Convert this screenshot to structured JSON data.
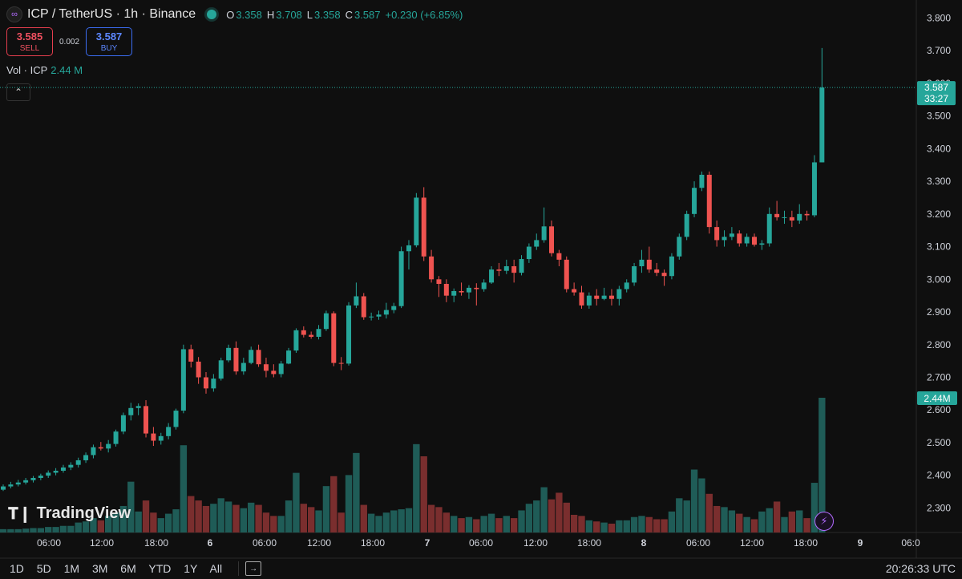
{
  "header": {
    "symbol_title": "ICP / TetherUS · 1h · Binance",
    "ohlc": [
      {
        "key": "O",
        "value": "3.358"
      },
      {
        "key": "H",
        "value": "3.708"
      },
      {
        "key": "L",
        "value": "3.358"
      },
      {
        "key": "C",
        "value": "3.587"
      }
    ],
    "change": "+0.230 (+6.85%)"
  },
  "trade": {
    "sell_price": "3.585",
    "sell_label": "SELL",
    "spread": "0.002",
    "buy_price": "3.587",
    "buy_label": "BUY"
  },
  "volume_legend": {
    "label": "Vol · ICP",
    "value": "2.44 M"
  },
  "price_tag": {
    "price": "3.587",
    "countdown": "33:27"
  },
  "volume_tag": "2.44M",
  "watermark": "TradingView",
  "toolbar": {
    "ranges": [
      "1D",
      "5D",
      "1M",
      "3M",
      "6M",
      "YTD",
      "1Y",
      "All"
    ],
    "clock": "20:26:33 UTC"
  },
  "colors": {
    "up": "#26a69a",
    "down": "#ef5350",
    "up_vol": "#1f5c57",
    "down_vol": "#7a2e2e",
    "background": "#0f0f0f"
  },
  "chart_data": {
    "type": "candlestick",
    "price_axis": {
      "ylim": [
        2.225,
        3.855
      ],
      "ticks": [
        "3.800",
        "3.700",
        "3.600",
        "3.500",
        "3.400",
        "3.300",
        "3.200",
        "3.100",
        "3.000",
        "2.900",
        "2.800",
        "2.700",
        "2.600",
        "2.500",
        "2.400",
        "2.300"
      ]
    },
    "time_axis_labels": [
      "06:00",
      "12:00",
      "18:00",
      "6",
      "06:00",
      "12:00",
      "18:00",
      "7",
      "06:00",
      "12:00",
      "18:00",
      "8",
      "06:00",
      "12:00",
      "18:00",
      "9",
      "06:0"
    ],
    "volume_axis": {
      "max": 2.44
    },
    "candles": [
      {
        "o": 2.356,
        "h": 2.372,
        "l": 2.352,
        "c": 2.366,
        "v": 0.06
      },
      {
        "o": 2.366,
        "h": 2.38,
        "l": 2.36,
        "c": 2.372,
        "v": 0.06
      },
      {
        "o": 2.372,
        "h": 2.386,
        "l": 2.366,
        "c": 2.378,
        "v": 0.06
      },
      {
        "o": 2.378,
        "h": 2.392,
        "l": 2.372,
        "c": 2.385,
        "v": 0.07
      },
      {
        "o": 2.385,
        "h": 2.398,
        "l": 2.378,
        "c": 2.392,
        "v": 0.08
      },
      {
        "o": 2.392,
        "h": 2.405,
        "l": 2.385,
        "c": 2.399,
        "v": 0.08
      },
      {
        "o": 2.399,
        "h": 2.415,
        "l": 2.392,
        "c": 2.408,
        "v": 0.1
      },
      {
        "o": 2.408,
        "h": 2.422,
        "l": 2.4,
        "c": 2.414,
        "v": 0.1
      },
      {
        "o": 2.414,
        "h": 2.432,
        "l": 2.408,
        "c": 2.424,
        "v": 0.12
      },
      {
        "o": 2.424,
        "h": 2.44,
        "l": 2.416,
        "c": 2.432,
        "v": 0.12
      },
      {
        "o": 2.432,
        "h": 2.454,
        "l": 2.424,
        "c": 2.446,
        "v": 0.18
      },
      {
        "o": 2.446,
        "h": 2.47,
        "l": 2.438,
        "c": 2.462,
        "v": 0.2
      },
      {
        "o": 2.462,
        "h": 2.494,
        "l": 2.452,
        "c": 2.486,
        "v": 0.26
      },
      {
        "o": 2.486,
        "h": 2.502,
        "l": 2.476,
        "c": 2.482,
        "v": 0.22
      },
      {
        "o": 2.482,
        "h": 2.508,
        "l": 2.47,
        "c": 2.496,
        "v": 0.3
      },
      {
        "o": 2.496,
        "h": 2.54,
        "l": 2.488,
        "c": 2.534,
        "v": 0.36
      },
      {
        "o": 2.534,
        "h": 2.592,
        "l": 2.526,
        "c": 2.584,
        "v": 0.48
      },
      {
        "o": 2.584,
        "h": 2.622,
        "l": 2.568,
        "c": 2.606,
        "v": 0.92
      },
      {
        "o": 2.606,
        "h": 2.62,
        "l": 2.584,
        "c": 2.612,
        "v": 0.38
      },
      {
        "o": 2.612,
        "h": 2.63,
        "l": 2.516,
        "c": 2.528,
        "v": 0.58
      },
      {
        "o": 2.528,
        "h": 2.548,
        "l": 2.49,
        "c": 2.506,
        "v": 0.36
      },
      {
        "o": 2.506,
        "h": 2.53,
        "l": 2.494,
        "c": 2.52,
        "v": 0.26
      },
      {
        "o": 2.52,
        "h": 2.56,
        "l": 2.51,
        "c": 2.548,
        "v": 0.34
      },
      {
        "o": 2.548,
        "h": 2.604,
        "l": 2.54,
        "c": 2.598,
        "v": 0.42
      },
      {
        "o": 2.598,
        "h": 2.8,
        "l": 2.59,
        "c": 2.786,
        "v": 1.58
      },
      {
        "o": 2.786,
        "h": 2.8,
        "l": 2.73,
        "c": 2.748,
        "v": 0.66
      },
      {
        "o": 2.748,
        "h": 2.762,
        "l": 2.68,
        "c": 2.7,
        "v": 0.58
      },
      {
        "o": 2.7,
        "h": 2.716,
        "l": 2.65,
        "c": 2.666,
        "v": 0.48
      },
      {
        "o": 2.666,
        "h": 2.71,
        "l": 2.656,
        "c": 2.696,
        "v": 0.52
      },
      {
        "o": 2.696,
        "h": 2.76,
        "l": 2.69,
        "c": 2.752,
        "v": 0.62
      },
      {
        "o": 2.752,
        "h": 2.8,
        "l": 2.746,
        "c": 2.79,
        "v": 0.56
      },
      {
        "o": 2.79,
        "h": 2.81,
        "l": 2.708,
        "c": 2.718,
        "v": 0.5
      },
      {
        "o": 2.718,
        "h": 2.76,
        "l": 2.708,
        "c": 2.744,
        "v": 0.44
      },
      {
        "o": 2.744,
        "h": 2.794,
        "l": 2.74,
        "c": 2.784,
        "v": 0.54
      },
      {
        "o": 2.784,
        "h": 2.8,
        "l": 2.732,
        "c": 2.74,
        "v": 0.5
      },
      {
        "o": 2.74,
        "h": 2.76,
        "l": 2.7,
        "c": 2.72,
        "v": 0.36
      },
      {
        "o": 2.72,
        "h": 2.74,
        "l": 2.7,
        "c": 2.71,
        "v": 0.3
      },
      {
        "o": 2.71,
        "h": 2.75,
        "l": 2.7,
        "c": 2.742,
        "v": 0.3
      },
      {
        "o": 2.742,
        "h": 2.79,
        "l": 2.74,
        "c": 2.782,
        "v": 0.58
      },
      {
        "o": 2.782,
        "h": 2.85,
        "l": 2.775,
        "c": 2.844,
        "v": 1.08
      },
      {
        "o": 2.844,
        "h": 2.856,
        "l": 2.822,
        "c": 2.83,
        "v": 0.52
      },
      {
        "o": 2.83,
        "h": 2.84,
        "l": 2.818,
        "c": 2.824,
        "v": 0.46
      },
      {
        "o": 2.824,
        "h": 2.86,
        "l": 2.816,
        "c": 2.848,
        "v": 0.4
      },
      {
        "o": 2.848,
        "h": 2.904,
        "l": 2.842,
        "c": 2.896,
        "v": 0.84
      },
      {
        "o": 2.896,
        "h": 2.902,
        "l": 2.734,
        "c": 2.744,
        "v": 1.02
      },
      {
        "o": 2.744,
        "h": 2.762,
        "l": 2.722,
        "c": 2.742,
        "v": 0.36
      },
      {
        "o": 2.742,
        "h": 2.93,
        "l": 2.736,
        "c": 2.92,
        "v": 1.04
      },
      {
        "o": 2.92,
        "h": 2.99,
        "l": 2.912,
        "c": 2.948,
        "v": 1.44
      },
      {
        "o": 2.948,
        "h": 2.958,
        "l": 2.876,
        "c": 2.884,
        "v": 0.5
      },
      {
        "o": 2.884,
        "h": 2.898,
        "l": 2.874,
        "c": 2.886,
        "v": 0.34
      },
      {
        "o": 2.886,
        "h": 2.904,
        "l": 2.876,
        "c": 2.892,
        "v": 0.3
      },
      {
        "o": 2.892,
        "h": 2.928,
        "l": 2.88,
        "c": 2.906,
        "v": 0.36
      },
      {
        "o": 2.906,
        "h": 2.928,
        "l": 2.896,
        "c": 2.918,
        "v": 0.4
      },
      {
        "o": 2.918,
        "h": 3.1,
        "l": 2.912,
        "c": 3.086,
        "v": 0.42
      },
      {
        "o": 3.086,
        "h": 3.12,
        "l": 3.03,
        "c": 3.104,
        "v": 0.44
      },
      {
        "o": 3.104,
        "h": 3.264,
        "l": 3.098,
        "c": 3.25,
        "v": 1.6
      },
      {
        "o": 3.25,
        "h": 3.282,
        "l": 3.056,
        "c": 3.07,
        "v": 1.38
      },
      {
        "o": 3.07,
        "h": 3.09,
        "l": 2.99,
        "c": 3.0,
        "v": 0.5
      },
      {
        "o": 3.0,
        "h": 3.01,
        "l": 2.946,
        "c": 2.986,
        "v": 0.46
      },
      {
        "o": 2.986,
        "h": 3.0,
        "l": 2.93,
        "c": 2.95,
        "v": 0.36
      },
      {
        "o": 2.95,
        "h": 2.972,
        "l": 2.93,
        "c": 2.964,
        "v": 0.3
      },
      {
        "o": 2.964,
        "h": 2.99,
        "l": 2.95,
        "c": 2.96,
        "v": 0.26
      },
      {
        "o": 2.96,
        "h": 2.982,
        "l": 2.94,
        "c": 2.974,
        "v": 0.28
      },
      {
        "o": 2.974,
        "h": 2.988,
        "l": 2.92,
        "c": 2.97,
        "v": 0.24
      },
      {
        "o": 2.97,
        "h": 3.0,
        "l": 2.962,
        "c": 2.99,
        "v": 0.3
      },
      {
        "o": 2.99,
        "h": 3.04,
        "l": 2.986,
        "c": 3.03,
        "v": 0.34
      },
      {
        "o": 3.03,
        "h": 3.05,
        "l": 3.01,
        "c": 3.026,
        "v": 0.26
      },
      {
        "o": 3.026,
        "h": 3.06,
        "l": 3.016,
        "c": 3.04,
        "v": 0.3
      },
      {
        "o": 3.04,
        "h": 3.06,
        "l": 2.99,
        "c": 3.02,
        "v": 0.26
      },
      {
        "o": 3.02,
        "h": 3.074,
        "l": 3.012,
        "c": 3.062,
        "v": 0.4
      },
      {
        "o": 3.062,
        "h": 3.11,
        "l": 3.05,
        "c": 3.1,
        "v": 0.52
      },
      {
        "o": 3.1,
        "h": 3.14,
        "l": 3.09,
        "c": 3.12,
        "v": 0.58
      },
      {
        "o": 3.12,
        "h": 3.22,
        "l": 3.112,
        "c": 3.162,
        "v": 0.82
      },
      {
        "o": 3.162,
        "h": 3.18,
        "l": 3.07,
        "c": 3.08,
        "v": 0.6
      },
      {
        "o": 3.08,
        "h": 3.09,
        "l": 3.04,
        "c": 3.06,
        "v": 0.72
      },
      {
        "o": 3.06,
        "h": 3.07,
        "l": 2.96,
        "c": 2.97,
        "v": 0.54
      },
      {
        "o": 2.97,
        "h": 2.99,
        "l": 2.95,
        "c": 2.96,
        "v": 0.32
      },
      {
        "o": 2.96,
        "h": 2.98,
        "l": 2.91,
        "c": 2.92,
        "v": 0.3
      },
      {
        "o": 2.92,
        "h": 2.96,
        "l": 2.91,
        "c": 2.95,
        "v": 0.22
      },
      {
        "o": 2.95,
        "h": 2.97,
        "l": 2.92,
        "c": 2.94,
        "v": 0.2
      },
      {
        "o": 2.94,
        "h": 2.974,
        "l": 2.936,
        "c": 2.95,
        "v": 0.18
      },
      {
        "o": 2.95,
        "h": 2.97,
        "l": 2.92,
        "c": 2.94,
        "v": 0.16
      },
      {
        "o": 2.94,
        "h": 2.98,
        "l": 2.92,
        "c": 2.97,
        "v": 0.22
      },
      {
        "o": 2.97,
        "h": 3.0,
        "l": 2.96,
        "c": 2.99,
        "v": 0.22
      },
      {
        "o": 2.99,
        "h": 3.05,
        "l": 2.98,
        "c": 3.04,
        "v": 0.28
      },
      {
        "o": 3.04,
        "h": 3.09,
        "l": 3.02,
        "c": 3.06,
        "v": 0.3
      },
      {
        "o": 3.06,
        "h": 3.1,
        "l": 3.02,
        "c": 3.03,
        "v": 0.28
      },
      {
        "o": 3.03,
        "h": 3.05,
        "l": 3.01,
        "c": 3.02,
        "v": 0.24
      },
      {
        "o": 3.02,
        "h": 3.03,
        "l": 2.98,
        "c": 3.01,
        "v": 0.24
      },
      {
        "o": 3.01,
        "h": 3.08,
        "l": 3.0,
        "c": 3.07,
        "v": 0.38
      },
      {
        "o": 3.07,
        "h": 3.14,
        "l": 3.06,
        "c": 3.13,
        "v": 0.62
      },
      {
        "o": 3.13,
        "h": 3.21,
        "l": 3.12,
        "c": 3.2,
        "v": 0.58
      },
      {
        "o": 3.2,
        "h": 3.3,
        "l": 3.19,
        "c": 3.28,
        "v": 1.14
      },
      {
        "o": 3.28,
        "h": 3.33,
        "l": 3.27,
        "c": 3.32,
        "v": 0.98
      },
      {
        "o": 3.32,
        "h": 3.33,
        "l": 3.14,
        "c": 3.16,
        "v": 0.7
      },
      {
        "o": 3.16,
        "h": 3.18,
        "l": 3.1,
        "c": 3.12,
        "v": 0.48
      },
      {
        "o": 3.12,
        "h": 3.15,
        "l": 3.1,
        "c": 3.13,
        "v": 0.46
      },
      {
        "o": 3.13,
        "h": 3.16,
        "l": 3.12,
        "c": 3.14,
        "v": 0.4
      },
      {
        "o": 3.14,
        "h": 3.15,
        "l": 3.1,
        "c": 3.11,
        "v": 0.34
      },
      {
        "o": 3.11,
        "h": 3.14,
        "l": 3.1,
        "c": 3.13,
        "v": 0.28
      },
      {
        "o": 3.13,
        "h": 3.14,
        "l": 3.1,
        "c": 3.106,
        "v": 0.24
      },
      {
        "o": 3.106,
        "h": 3.12,
        "l": 3.09,
        "c": 3.11,
        "v": 0.38
      },
      {
        "o": 3.11,
        "h": 3.22,
        "l": 3.1,
        "c": 3.2,
        "v": 0.44
      },
      {
        "o": 3.2,
        "h": 3.24,
        "l": 3.18,
        "c": 3.19,
        "v": 0.56
      },
      {
        "o": 3.19,
        "h": 3.21,
        "l": 3.17,
        "c": 3.19,
        "v": 0.28
      },
      {
        "o": 3.19,
        "h": 3.21,
        "l": 3.16,
        "c": 3.18,
        "v": 0.38
      },
      {
        "o": 3.18,
        "h": 3.23,
        "l": 3.17,
        "c": 3.2,
        "v": 0.4
      },
      {
        "o": 3.2,
        "h": 3.21,
        "l": 3.18,
        "c": 3.196,
        "v": 0.26
      },
      {
        "o": 3.196,
        "h": 3.38,
        "l": 3.19,
        "c": 3.358,
        "v": 0.9
      },
      {
        "o": 3.358,
        "h": 3.708,
        "l": 3.358,
        "c": 3.587,
        "v": 2.44
      }
    ]
  }
}
